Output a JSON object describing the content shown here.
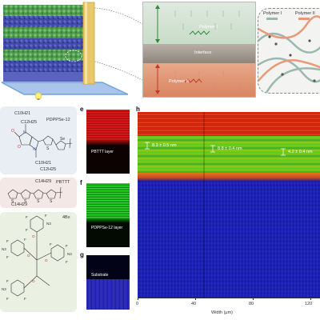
{
  "top": {
    "layer_labels": [
      "Polymer I",
      "Interface",
      "Polymer II"
    ],
    "legend": [
      "Polymer I",
      "Polymer II"
    ],
    "colors": {
      "polymer1": "#6ca86a",
      "polymer2": "#e07a50",
      "interface": "#9a8c7c",
      "substrate": "#3d4aa8"
    }
  },
  "structures": {
    "pdppse": {
      "name": "PDPPSe-12",
      "subs": [
        "C10H21",
        "C12H25",
        "C10H21",
        "C12H25"
      ],
      "atoms": [
        "N",
        "N",
        "O",
        "O",
        "S",
        "Se"
      ]
    },
    "pbttt": {
      "name": "PBTTT",
      "subs": [
        "C14H29",
        "C14H29"
      ],
      "atoms": [
        "S",
        "S",
        "S",
        "S"
      ]
    },
    "fourbx": {
      "name": "4Bx",
      "atoms": [
        "F",
        "N3",
        "F",
        "F",
        "F",
        "N3",
        "F",
        "F",
        "F",
        "N3",
        "F",
        "F",
        "F",
        "N3",
        "F",
        "F",
        "O",
        "O",
        "O",
        "O"
      ]
    }
  },
  "panels": {
    "e": {
      "letter": "e",
      "label": "PBTTT layer",
      "color": "#d81e1e"
    },
    "f": {
      "letter": "f",
      "label": "PDPPSe-12 layer",
      "color": "#1fbf1f"
    },
    "g": {
      "letter": "g",
      "label": "Substrate",
      "color": "#2a2ab8"
    },
    "h": {
      "letter": "h"
    }
  },
  "heatmap": {
    "annotations": [
      "8.3 ± 0.5 nm",
      "8.8 ± 0.4 nm",
      "4.2 ± 0.4 nm"
    ],
    "xaxis": {
      "label": "Width (μm)",
      "ticks": [
        "0",
        "40",
        "80",
        "120"
      ]
    }
  }
}
